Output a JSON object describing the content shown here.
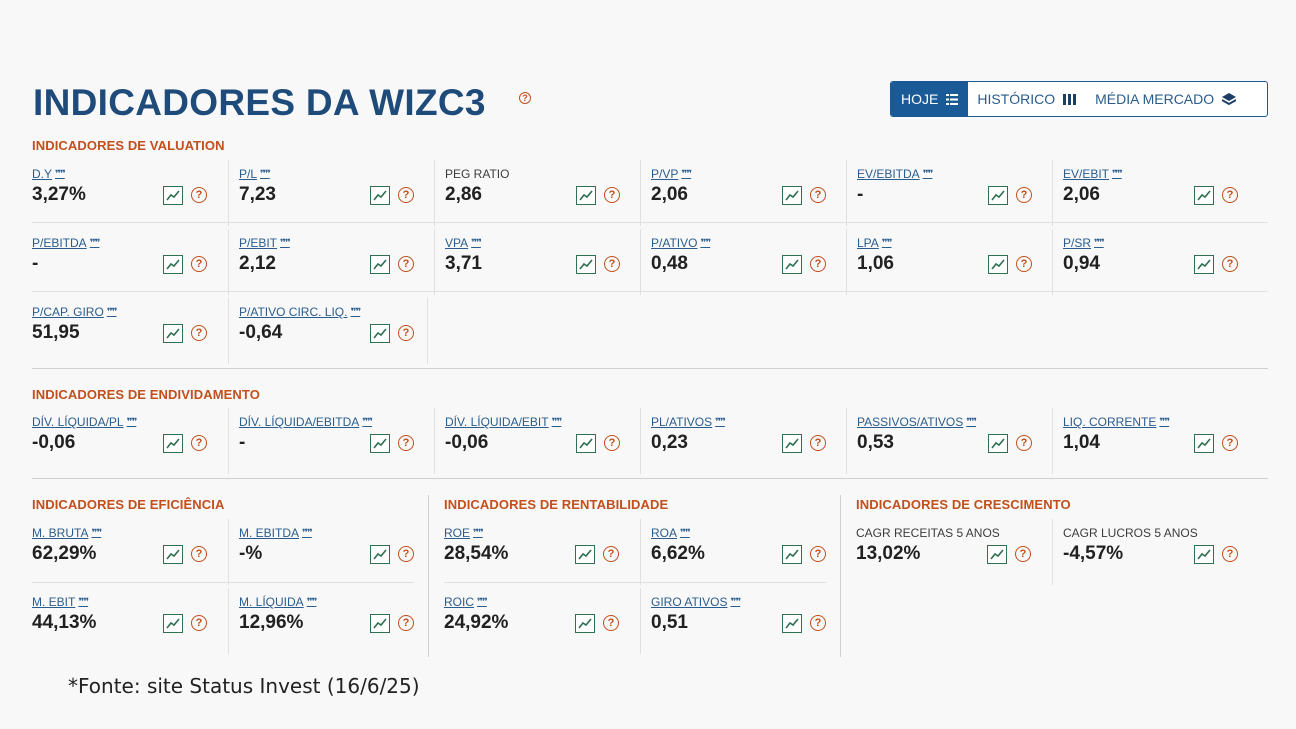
{
  "header": {
    "title": "INDICADORES DA WIZC3",
    "help_glyph": "?",
    "tabs": [
      {
        "label": "HOJE",
        "icon": "list-icon"
      },
      {
        "label": "HISTÓRICO",
        "icon": "bars-icon"
      },
      {
        "label": "MÉDIA MERCADO",
        "icon": "layers-icon"
      }
    ]
  },
  "valuation": {
    "title": "INDICADORES DE VALUATION",
    "items": [
      {
        "label": "D.Y",
        "value": "3,27%"
      },
      {
        "label": "P/L",
        "value": "7,23"
      },
      {
        "label": "PEG RATIO",
        "value": "2,86"
      },
      {
        "label": "P/VP",
        "value": "2,06"
      },
      {
        "label": "EV/EBITDA",
        "value": "-"
      },
      {
        "label": "EV/EBIT",
        "value": "2,06"
      },
      {
        "label": "P/EBITDA",
        "value": "-"
      },
      {
        "label": "P/EBIT",
        "value": "2,12"
      },
      {
        "label": "VPA",
        "value": "3,71"
      },
      {
        "label": "P/ATIVO",
        "value": "0,48"
      },
      {
        "label": "LPA",
        "value": "1,06"
      },
      {
        "label": "P/SR",
        "value": "0,94"
      },
      {
        "label": "P/CAP. GIRO",
        "value": "51,95"
      },
      {
        "label": "P/ATIVO CIRC. LIQ.",
        "value": "-0,64"
      }
    ]
  },
  "endividamento": {
    "title": "INDICADORES DE ENDIVIDAMENTO",
    "items": [
      {
        "label": "DÍV. LÍQUIDA/PL",
        "value": "-0,06"
      },
      {
        "label": "DÍV. LÍQUIDA/EBITDA",
        "value": "-"
      },
      {
        "label": "DÍV. LÍQUIDA/EBIT",
        "value": "-0,06"
      },
      {
        "label": "PL/ATIVOS",
        "value": "0,23"
      },
      {
        "label": "PASSIVOS/ATIVOS",
        "value": "0,53"
      },
      {
        "label": "LIQ. CORRENTE",
        "value": "1,04"
      }
    ]
  },
  "eficiencia": {
    "title": "INDICADORES DE EFICIÊNCIA",
    "items": [
      {
        "label": "M. BRUTA",
        "value": "62,29%"
      },
      {
        "label": "M. EBITDA",
        "value": "-%"
      },
      {
        "label": "M. EBIT",
        "value": "44,13%"
      },
      {
        "label": "M. LÍQUIDA",
        "value": "12,96%"
      }
    ]
  },
  "rentabilidade": {
    "title": "INDICADORES DE RENTABILIDADE",
    "items": [
      {
        "label": "ROE",
        "value": "28,54%"
      },
      {
        "label": "ROA",
        "value": "6,62%"
      },
      {
        "label": "ROIC",
        "value": "24,92%"
      },
      {
        "label": "GIRO ATIVOS",
        "value": "0,51"
      }
    ]
  },
  "crescimento": {
    "title": "INDICADORES DE CRESCIMENTO",
    "items": [
      {
        "label": "CAGR RECEITAS 5 ANOS",
        "value": "13,02%"
      },
      {
        "label": "CAGR LUCROS 5 ANOS",
        "value": "-4,57%"
      }
    ]
  },
  "footnote": "*Fonte: site Status Invest (16/6/25)",
  "colors": {
    "title": "#1e4b7a",
    "section_title": "#c24f1c",
    "label": "#2a5c8e",
    "tab_active": "#1a5a96",
    "chart_icon": "#2f6f52"
  }
}
